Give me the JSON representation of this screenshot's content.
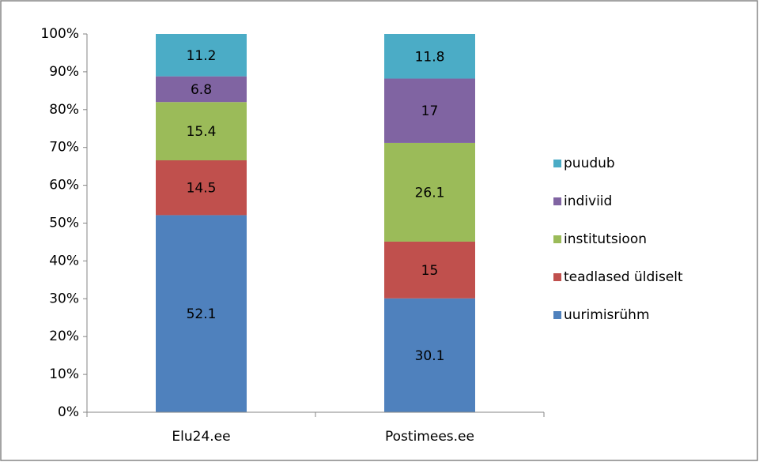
{
  "chart_data": {
    "type": "stacked_bar",
    "categories": [
      "Elu24.ee",
      "Postimees.ee"
    ],
    "series": [
      {
        "name": "uurimisrühm",
        "color": "#4f81bd",
        "values": [
          52.1,
          30.1
        ]
      },
      {
        "name": "teadlased üldiselt",
        "color": "#c0504d",
        "values": [
          14.5,
          15
        ]
      },
      {
        "name": "institutsioon",
        "color": "#9bbb59",
        "values": [
          15.4,
          26.1
        ]
      },
      {
        "name": "indiviid",
        "color": "#8064a2",
        "values": [
          6.8,
          17
        ]
      },
      {
        "name": "puudub",
        "color": "#4bacc6",
        "values": [
          11.2,
          11.8
        ]
      }
    ],
    "ylim": [
      0,
      100
    ],
    "yticks": [
      {
        "value": 0,
        "label": "0%"
      },
      {
        "value": 10,
        "label": "10%"
      },
      {
        "value": 20,
        "label": "20%"
      },
      {
        "value": 30,
        "label": "30%"
      },
      {
        "value": 40,
        "label": "40%"
      },
      {
        "value": 50,
        "label": "50%"
      },
      {
        "value": 60,
        "label": "60%"
      },
      {
        "value": 70,
        "label": "70%"
      },
      {
        "value": 80,
        "label": "80%"
      },
      {
        "value": 90,
        "label": "90%"
      },
      {
        "value": 100,
        "label": "100%"
      }
    ],
    "grid": false,
    "legend": "right"
  }
}
